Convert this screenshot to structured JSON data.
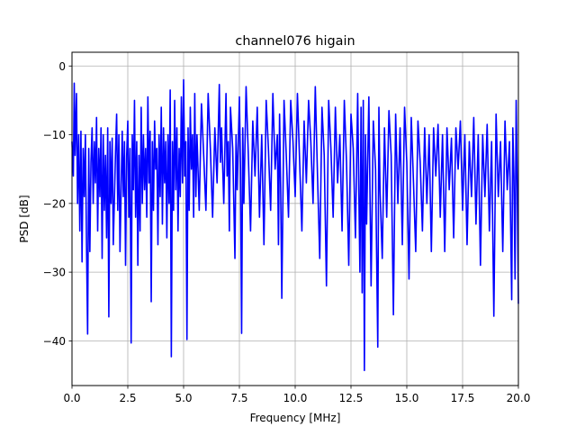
{
  "chart_data": {
    "type": "line",
    "title": "channel076 higain",
    "xlabel": "Frequency [MHz]",
    "ylabel": "PSD [dB]",
    "xlim": [
      0,
      20
    ],
    "ylim": [
      -46.5,
      2
    ],
    "grid": true,
    "x_ticks": [
      "0.0",
      "2.5",
      "5.0",
      "7.5",
      "10.0",
      "12.5",
      "15.0",
      "17.5",
      "20.0"
    ],
    "x_tick_values": [
      0,
      2.5,
      5,
      7.5,
      10,
      12.5,
      15,
      17.5,
      20
    ],
    "y_ticks": [
      "0",
      "−10",
      "−20",
      "−30",
      "−40"
    ],
    "y_tick_values": [
      0,
      -10,
      -20,
      -30,
      -40
    ],
    "series": [
      {
        "color": "#0000ff",
        "points": [
          [
            0.0,
            -11.0
          ],
          [
            0.06,
            -16.0
          ],
          [
            0.1,
            -2.5
          ],
          [
            0.14,
            -13.0
          ],
          [
            0.2,
            -4.0
          ],
          [
            0.25,
            -20.0
          ],
          [
            0.3,
            -10.0
          ],
          [
            0.35,
            -24.0
          ],
          [
            0.4,
            -9.5
          ],
          [
            0.45,
            -28.5
          ],
          [
            0.5,
            -12.0
          ],
          [
            0.55,
            -19.0
          ],
          [
            0.6,
            -10.0
          ],
          [
            0.65,
            -26.0
          ],
          [
            0.7,
            -39.0
          ],
          [
            0.75,
            -12.0
          ],
          [
            0.8,
            -27.0
          ],
          [
            0.85,
            -14.0
          ],
          [
            0.9,
            -9.0
          ],
          [
            0.95,
            -20.0
          ],
          [
            1.0,
            -11.0
          ],
          [
            1.05,
            -17.0
          ],
          [
            1.1,
            -7.5
          ],
          [
            1.15,
            -24.0
          ],
          [
            1.2,
            -12.0
          ],
          [
            1.25,
            -19.0
          ],
          [
            1.3,
            -9.0
          ],
          [
            1.35,
            -28.0
          ],
          [
            1.4,
            -10.0
          ],
          [
            1.45,
            -21.0
          ],
          [
            1.5,
            -13.0
          ],
          [
            1.55,
            -25.0
          ],
          [
            1.6,
            -9.0
          ],
          [
            1.65,
            -36.5
          ],
          [
            1.7,
            -11.0
          ],
          [
            1.75,
            -20.0
          ],
          [
            1.8,
            -10.5
          ],
          [
            1.85,
            -26.0
          ],
          [
            1.95,
            -12.5
          ],
          [
            2.0,
            -7.0
          ],
          [
            2.05,
            -21.0
          ],
          [
            2.1,
            -10.0
          ],
          [
            2.15,
            -27.0
          ],
          [
            2.25,
            -9.5
          ],
          [
            2.3,
            -19.0
          ],
          [
            2.35,
            -11.0
          ],
          [
            2.4,
            -29.0
          ],
          [
            2.45,
            -13.0
          ],
          [
            2.5,
            -8.0
          ],
          [
            2.55,
            -22.0
          ],
          [
            2.6,
            -12.0
          ],
          [
            2.65,
            -40.3
          ],
          [
            2.7,
            -10.0
          ],
          [
            2.75,
            -18.0
          ],
          [
            2.8,
            -5.0
          ],
          [
            2.85,
            -22.0
          ],
          [
            2.9,
            -11.0
          ],
          [
            2.95,
            -29.0
          ],
          [
            3.0,
            -13.0
          ],
          [
            3.05,
            -24.0
          ],
          [
            3.1,
            -6.0
          ],
          [
            3.15,
            -20.0
          ],
          [
            3.2,
            -10.0
          ],
          [
            3.25,
            -18.0
          ],
          [
            3.3,
            -12.0
          ],
          [
            3.35,
            -22.0
          ],
          [
            3.4,
            -4.5
          ],
          [
            3.45,
            -17.0
          ],
          [
            3.5,
            -9.5
          ],
          [
            3.55,
            -34.3
          ],
          [
            3.6,
            -11.0
          ],
          [
            3.65,
            -21.0
          ],
          [
            3.7,
            -8.0
          ],
          [
            3.75,
            -15.0
          ],
          [
            3.8,
            -12.0
          ],
          [
            3.85,
            -26.0
          ],
          [
            3.9,
            -10.0
          ],
          [
            3.95,
            -19.0
          ],
          [
            4.0,
            -6.0
          ],
          [
            4.05,
            -23.0
          ],
          [
            4.1,
            -9.0
          ],
          [
            4.15,
            -17.0
          ],
          [
            4.2,
            -11.0
          ],
          [
            4.25,
            -25.0
          ],
          [
            4.3,
            -10.0
          ],
          [
            4.35,
            -20.0
          ],
          [
            4.4,
            -3.5
          ],
          [
            4.45,
            -42.3
          ],
          [
            4.5,
            -11.0
          ],
          [
            4.55,
            -21.0
          ],
          [
            4.6,
            -5.0
          ],
          [
            4.65,
            -18.0
          ],
          [
            4.7,
            -9.0
          ],
          [
            4.75,
            -24.0
          ],
          [
            4.8,
            -12.0
          ],
          [
            4.85,
            -19.0
          ],
          [
            4.9,
            -4.5
          ],
          [
            4.95,
            -17.0
          ],
          [
            5.0,
            -2.0
          ],
          [
            5.05,
            -16.0
          ],
          [
            5.1,
            -11.0
          ],
          [
            5.15,
            -39.8
          ],
          [
            5.2,
            -9.0
          ],
          [
            5.25,
            -21.0
          ],
          [
            5.3,
            -6.0
          ],
          [
            5.35,
            -15.0
          ],
          [
            5.4,
            -10.0
          ],
          [
            5.45,
            -22.0
          ],
          [
            5.5,
            -4.0
          ],
          [
            5.55,
            -19.0
          ],
          [
            5.6,
            -10.0
          ],
          [
            5.7,
            -21.0
          ],
          [
            5.8,
            -5.5
          ],
          [
            5.9,
            -13.0
          ],
          [
            6.0,
            -21.0
          ],
          [
            6.1,
            -4.0
          ],
          [
            6.2,
            -12.0
          ],
          [
            6.3,
            -22.0
          ],
          [
            6.4,
            -9.0
          ],
          [
            6.5,
            -17.0
          ],
          [
            6.6,
            -2.7
          ],
          [
            6.65,
            -14.0
          ],
          [
            6.7,
            -9.0
          ],
          [
            6.8,
            -20.0
          ],
          [
            6.9,
            -4.0
          ],
          [
            6.95,
            -16.0
          ],
          [
            7.0,
            -11.0
          ],
          [
            7.05,
            -24.0
          ],
          [
            7.1,
            -6.0
          ],
          [
            7.2,
            -12.0
          ],
          [
            7.3,
            -28.0
          ],
          [
            7.35,
            -10.0
          ],
          [
            7.4,
            -18.0
          ],
          [
            7.5,
            -4.5
          ],
          [
            7.55,
            -15.0
          ],
          [
            7.6,
            -38.9
          ],
          [
            7.65,
            -9.0
          ],
          [
            7.7,
            -20.0
          ],
          [
            7.8,
            -3.0
          ],
          [
            7.9,
            -13.0
          ],
          [
            8.0,
            -24.0
          ],
          [
            8.1,
            -8.0
          ],
          [
            8.2,
            -16.0
          ],
          [
            8.3,
            -6.0
          ],
          [
            8.4,
            -22.0
          ],
          [
            8.5,
            -10.0
          ],
          [
            8.6,
            -26.0
          ],
          [
            8.7,
            -5.0
          ],
          [
            8.8,
            -12.0
          ],
          [
            8.9,
            -21.0
          ],
          [
            9.0,
            -4.0
          ],
          [
            9.1,
            -15.0
          ],
          [
            9.2,
            -10.0
          ],
          [
            9.25,
            -26.0
          ],
          [
            9.3,
            -7.0
          ],
          [
            9.35,
            -18.0
          ],
          [
            9.4,
            -33.8
          ],
          [
            9.5,
            -5.0
          ],
          [
            9.6,
            -13.0
          ],
          [
            9.7,
            -22.0
          ],
          [
            9.8,
            -5.0
          ],
          [
            9.9,
            -11.0
          ],
          [
            10.0,
            -19.0
          ],
          [
            10.1,
            -4.0
          ],
          [
            10.2,
            -14.0
          ],
          [
            10.3,
            -24.0
          ],
          [
            10.4,
            -8.0
          ],
          [
            10.5,
            -17.0
          ],
          [
            10.6,
            -5.0
          ],
          [
            10.7,
            -11.0
          ],
          [
            10.8,
            -20.0
          ],
          [
            10.9,
            -3.0
          ],
          [
            11.0,
            -16.0
          ],
          [
            11.1,
            -28.0
          ],
          [
            11.2,
            -6.0
          ],
          [
            11.3,
            -13.0
          ],
          [
            11.4,
            -32.0
          ],
          [
            11.5,
            -5.0
          ],
          [
            11.6,
            -12.0
          ],
          [
            11.7,
            -22.0
          ],
          [
            11.8,
            -6.0
          ],
          [
            11.9,
            -17.0
          ],
          [
            12.0,
            -10.0
          ],
          [
            12.1,
            -24.0
          ],
          [
            12.2,
            -5.0
          ],
          [
            12.3,
            -14.0
          ],
          [
            12.4,
            -29.0
          ],
          [
            12.5,
            -7.0
          ],
          [
            12.6,
            -12.0
          ],
          [
            12.7,
            -25.0
          ],
          [
            12.8,
            -4.0
          ],
          [
            12.85,
            -18.0
          ],
          [
            12.9,
            -30.0
          ],
          [
            12.95,
            -6.0
          ],
          [
            13.0,
            -33.0
          ],
          [
            13.05,
            -5.0
          ],
          [
            13.1,
            -44.3
          ],
          [
            13.15,
            -10.0
          ],
          [
            13.2,
            -23.0
          ],
          [
            13.3,
            -4.5
          ],
          [
            13.4,
            -32.0
          ],
          [
            13.5,
            -8.0
          ],
          [
            13.6,
            -15.0
          ],
          [
            13.7,
            -40.9
          ],
          [
            13.75,
            -6.0
          ],
          [
            13.8,
            -18.0
          ],
          [
            13.9,
            -28.0
          ],
          [
            14.0,
            -9.0
          ],
          [
            14.1,
            -22.0
          ],
          [
            14.2,
            -6.5
          ],
          [
            14.3,
            -13.0
          ],
          [
            14.4,
            -36.2
          ],
          [
            14.5,
            -7.0
          ],
          [
            14.6,
            -20.0
          ],
          [
            14.7,
            -9.0
          ],
          [
            14.8,
            -26.0
          ],
          [
            14.9,
            -6.0
          ],
          [
            15.0,
            -14.0
          ],
          [
            15.1,
            -31.0
          ],
          [
            15.2,
            -7.5
          ],
          [
            15.3,
            -17.0
          ],
          [
            15.4,
            -27.0
          ],
          [
            15.5,
            -8.0
          ],
          [
            15.6,
            -14.0
          ],
          [
            15.7,
            -24.0
          ],
          [
            15.8,
            -9.0
          ],
          [
            15.9,
            -20.0
          ],
          [
            16.0,
            -10.0
          ],
          [
            16.1,
            -27.0
          ],
          [
            16.2,
            -9.0
          ],
          [
            16.3,
            -16.0
          ],
          [
            16.4,
            -8.5
          ],
          [
            16.5,
            -22.0
          ],
          [
            16.6,
            -10.0
          ],
          [
            16.7,
            -27.0
          ],
          [
            16.8,
            -9.0
          ],
          [
            16.9,
            -18.0
          ],
          [
            17.0,
            -10.5
          ],
          [
            17.1,
            -25.0
          ],
          [
            17.2,
            -9.0
          ],
          [
            17.3,
            -15.0
          ],
          [
            17.4,
            -8.0
          ],
          [
            17.5,
            -21.0
          ],
          [
            17.6,
            -10.0
          ],
          [
            17.7,
            -26.0
          ],
          [
            17.8,
            -11.0
          ],
          [
            17.9,
            -19.0
          ],
          [
            18.0,
            -7.5
          ],
          [
            18.1,
            -23.0
          ],
          [
            18.2,
            -10.0
          ],
          [
            18.3,
            -29.0
          ],
          [
            18.4,
            -10.0
          ],
          [
            18.5,
            -19.0
          ],
          [
            18.6,
            -8.5
          ],
          [
            18.7,
            -24.0
          ],
          [
            18.8,
            -11.0
          ],
          [
            18.9,
            -36.4
          ],
          [
            19.0,
            -7.0
          ],
          [
            19.1,
            -19.0
          ],
          [
            19.2,
            -11.0
          ],
          [
            19.3,
            -27.0
          ],
          [
            19.4,
            -8.0
          ],
          [
            19.5,
            -18.0
          ],
          [
            19.6,
            -11.0
          ],
          [
            19.7,
            -34.0
          ],
          [
            19.75,
            -9.0
          ],
          [
            19.8,
            -16.0
          ],
          [
            19.85,
            -31.0
          ],
          [
            19.9,
            -5.0
          ],
          [
            19.95,
            -18.0
          ],
          [
            20.0,
            -34.6
          ]
        ]
      }
    ]
  }
}
